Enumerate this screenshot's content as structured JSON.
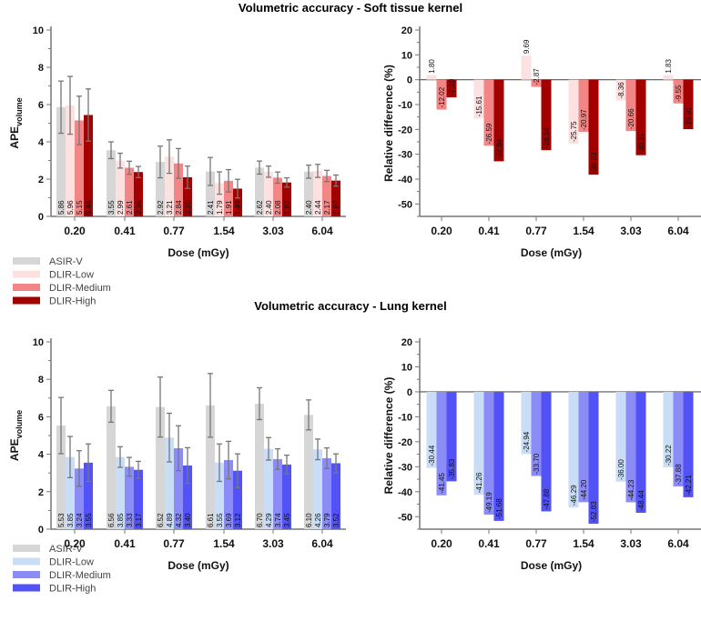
{
  "colors": {
    "asir": "#d6d6d6",
    "soft": [
      "#fde0e0",
      "#f28585",
      "#a30000"
    ],
    "lung": [
      "#c9ddf6",
      "#8c8cf7",
      "#5252f7"
    ],
    "axis": "#777777",
    "errorbar": "#777777"
  },
  "chart_data": [
    {
      "type": "bar",
      "title": "Volumetric accuracy - Soft tissue kernel",
      "xlabel": "Dose (mGy)",
      "ylabel": "APE",
      "ylabel_sub": "volume",
      "ylim": [
        0,
        10
      ],
      "yticks": [
        "0",
        "2",
        "4",
        "6",
        "8",
        "10"
      ],
      "categories": [
        "0.20",
        "0.41",
        "0.77",
        "1.54",
        "3.03",
        "6.04"
      ],
      "legend": "bottom-left",
      "series": [
        {
          "name": "ASIR-V",
          "values": [
            "5.86",
            "3.55",
            "2.92",
            "2.41",
            "2.62",
            "2.40"
          ],
          "errors": [
            1.4,
            0.45,
            0.85,
            0.75,
            0.35,
            0.35
          ]
        },
        {
          "name": "DLIR-Low",
          "values": [
            "5.96",
            "2.99",
            "3.21",
            "1.79",
            "2.40",
            "2.44"
          ],
          "errors": [
            1.55,
            0.4,
            0.9,
            0.6,
            0.3,
            0.35
          ]
        },
        {
          "name": "DLIR-Medium",
          "values": [
            "5.15",
            "2.61",
            "2.84",
            "1.91",
            "2.08",
            "2.17"
          ],
          "errors": [
            1.3,
            0.35,
            0.8,
            0.6,
            0.3,
            0.3
          ]
        },
        {
          "name": "DLIR-High",
          "values": [
            "5.44",
            "2.38",
            "2.10",
            "1.49",
            "1.82",
            "1.92"
          ],
          "errors": [
            1.4,
            0.3,
            0.6,
            0.5,
            0.25,
            0.3
          ]
        }
      ]
    },
    {
      "type": "bar",
      "xlabel": "Dose (mGy)",
      "ylabel": "Relative difference (%)",
      "ylim": [
        -55,
        20
      ],
      "yticks": [
        "20",
        "10",
        "0",
        "-10",
        "-20",
        "-30",
        "-40",
        "-50"
      ],
      "categories": [
        "0.20",
        "0.41",
        "0.77",
        "1.54",
        "3.03",
        "6.04"
      ],
      "series": [
        {
          "values": [
            "1.80",
            "-15.61",
            "9.69",
            "-25.75",
            "-8.36",
            "1.83"
          ]
        },
        {
          "values": [
            "-12.02",
            "-26.59",
            "-2.87",
            "-20.97",
            "-20.66",
            "-9.55"
          ]
        },
        {
          "values": [
            "-7.10",
            "-32.84",
            "-28.34",
            "-38.23",
            "-30.37",
            "-19.91"
          ]
        }
      ]
    },
    {
      "type": "bar",
      "title": "Volumetric accuracy - Lung kernel",
      "xlabel": "Dose (mGy)",
      "ylabel": "APE",
      "ylabel_sub": "volume",
      "ylim": [
        0,
        10
      ],
      "yticks": [
        "0",
        "2",
        "4",
        "6",
        "8",
        "10"
      ],
      "categories": [
        "0.20",
        "0.41",
        "0.77",
        "1.54",
        "3.03",
        "6.04"
      ],
      "legend": "bottom-left",
      "series": [
        {
          "name": "ASIR-V",
          "values": [
            "5.53",
            "6.56",
            "6.52",
            "6.61",
            "6.70",
            "6.10"
          ],
          "errors": [
            1.5,
            0.85,
            1.6,
            1.7,
            0.85,
            0.8
          ]
        },
        {
          "name": "DLIR-Low",
          "values": [
            "3.85",
            "3.85",
            "4.89",
            "3.55",
            "4.29",
            "4.26"
          ],
          "errors": [
            1.1,
            0.55,
            1.3,
            1.0,
            0.6,
            0.55
          ]
        },
        {
          "name": "DLIR-Medium",
          "values": [
            "3.24",
            "3.33",
            "4.32",
            "3.69",
            "3.74",
            "3.79"
          ],
          "errors": [
            0.95,
            0.5,
            1.2,
            1.0,
            0.55,
            0.55
          ]
        },
        {
          "name": "DLIR-High",
          "values": [
            "3.55",
            "3.17",
            "3.40",
            "3.12",
            "3.45",
            "3.52"
          ],
          "errors": [
            1.0,
            0.45,
            0.95,
            0.9,
            0.5,
            0.5
          ]
        }
      ]
    },
    {
      "type": "bar",
      "xlabel": "Dose (mGy)",
      "ylabel": "Relative difference (%)",
      "ylim": [
        -55,
        20
      ],
      "yticks": [
        "20",
        "10",
        "0",
        "-10",
        "-20",
        "-30",
        "-40",
        "-50"
      ],
      "categories": [
        "0.20",
        "0.41",
        "0.77",
        "1.54",
        "3.03",
        "6.04"
      ],
      "series": [
        {
          "values": [
            "-30.44",
            "-41.26",
            "-24.94",
            "-46.29",
            "-36.00",
            "-30.22"
          ]
        },
        {
          "values": [
            "-41.45",
            "-49.19",
            "-33.70",
            "-44.20",
            "-44.23",
            "-37.88"
          ]
        },
        {
          "values": [
            "-35.83",
            "-51.68",
            "-47.88",
            "-52.83",
            "-48.44",
            "-42.21"
          ]
        }
      ]
    }
  ]
}
